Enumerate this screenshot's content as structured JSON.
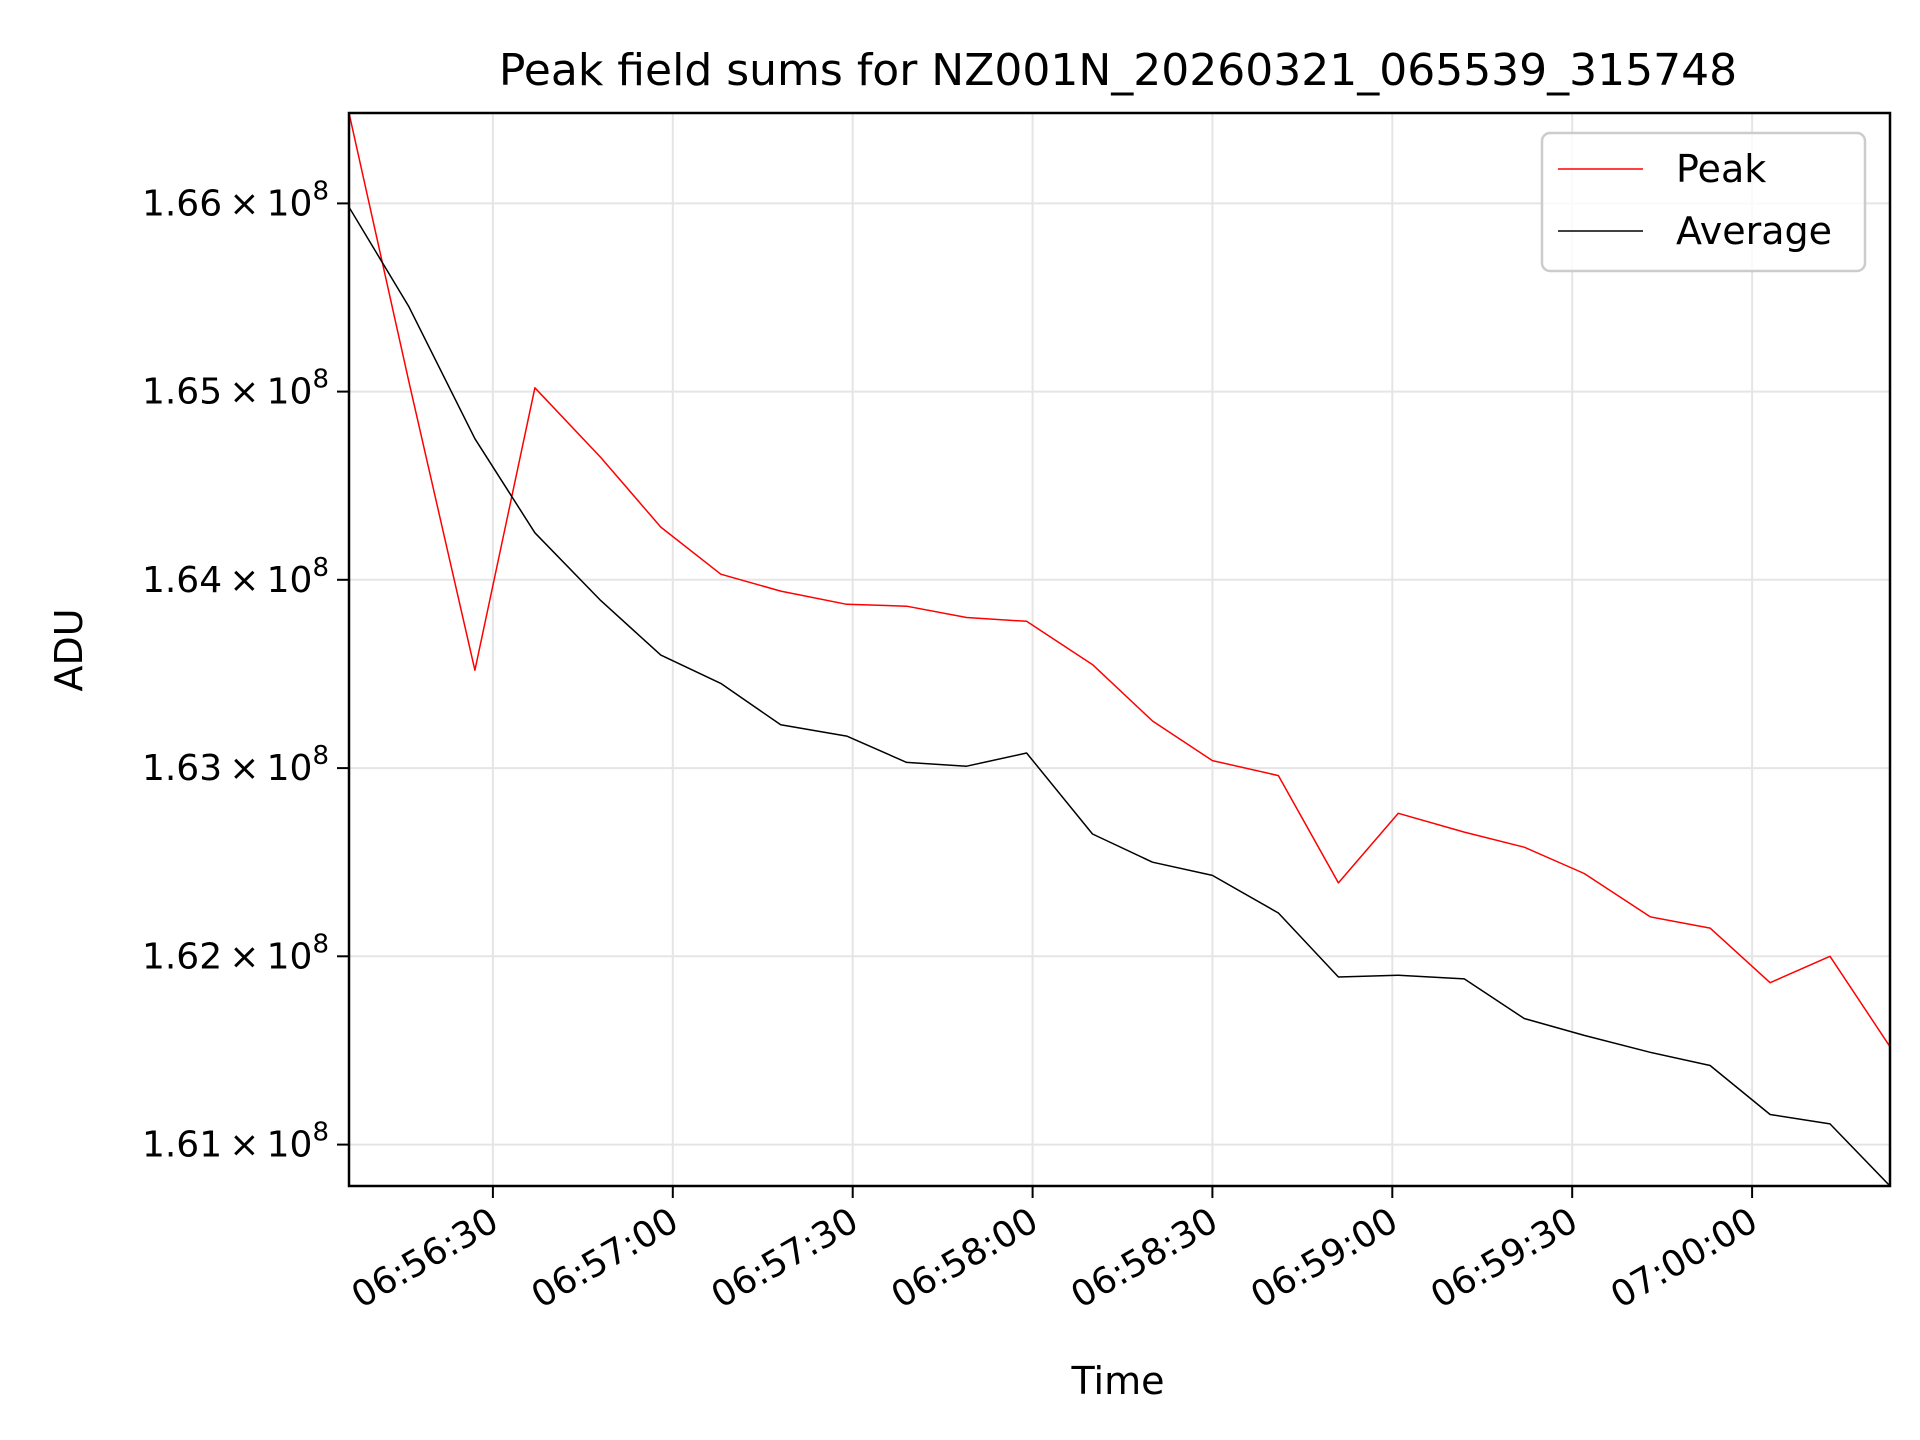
{
  "chart_data": {
    "type": "line",
    "title": "Peak field sums for NZ001N_20260321_065539_315748",
    "xlabel": "Time",
    "ylabel": "ADU",
    "x_range": [
      "06:56:06",
      "07:00:23"
    ],
    "ylim": [
      160780000,
      166480000
    ],
    "grid": true,
    "legend": "top-right",
    "x_ticks": [
      "06:56:30",
      "06:57:00",
      "06:57:30",
      "06:58:00",
      "06:58:30",
      "06:59:00",
      "06:59:30",
      "07:00:00"
    ],
    "y_ticks": [
      {
        "value": 161000000,
        "mantissa": "1.61",
        "exponent": "8"
      },
      {
        "value": 162000000,
        "mantissa": "1.62",
        "exponent": "8"
      },
      {
        "value": 163000000,
        "mantissa": "1.63",
        "exponent": "8"
      },
      {
        "value": 164000000,
        "mantissa": "1.64",
        "exponent": "8"
      },
      {
        "value": 165000000,
        "mantissa": "1.65",
        "exponent": "8"
      },
      {
        "value": 166000000,
        "mantissa": "1.66",
        "exponent": "8"
      }
    ],
    "x": [
      "06:56:06",
      "06:56:16",
      "06:56:27",
      "06:56:37",
      "06:56:48",
      "06:56:58",
      "06:57:08",
      "06:57:18",
      "06:57:29",
      "06:57:39",
      "06:57:49",
      "06:57:59",
      "06:58:10",
      "06:58:20",
      "06:58:30",
      "06:58:41",
      "06:58:51",
      "06:59:01",
      "06:59:12",
      "06:59:22",
      "06:59:32",
      "06:59:43",
      "06:59:53",
      "07:00:03",
      "07:00:13",
      "07:00:23"
    ],
    "series": [
      {
        "name": "Peak",
        "color": "#ff0000",
        "values": [
          166480000,
          165050000,
          163520000,
          165020000,
          164650000,
          164280000,
          164030000,
          163940000,
          163870000,
          163860000,
          163800000,
          163780000,
          163550000,
          163250000,
          163040000,
          162960000,
          162390000,
          162760000,
          162660000,
          162580000,
          162440000,
          162210000,
          162150000,
          161860000,
          162000000,
          161520000
        ]
      },
      {
        "name": "Average",
        "color": "#000000",
        "values": [
          165980000,
          165450000,
          164750000,
          164250000,
          163890000,
          163600000,
          163450000,
          163230000,
          163170000,
          163030000,
          163010000,
          163080000,
          162650000,
          162500000,
          162430000,
          162230000,
          161890000,
          161900000,
          161880000,
          161670000,
          161580000,
          161490000,
          161420000,
          161160000,
          161110000,
          160780000
        ]
      }
    ]
  }
}
